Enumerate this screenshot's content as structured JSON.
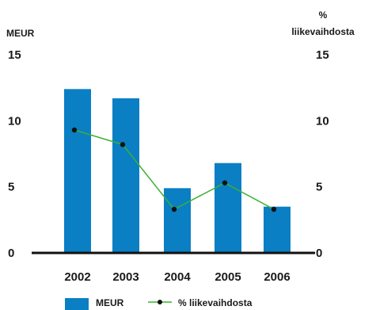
{
  "chart_data": {
    "type": "bar",
    "categories": [
      "2002",
      "2003",
      "2004",
      "2005",
      "2006"
    ],
    "series": [
      {
        "name": "MEUR",
        "kind": "bar",
        "axis": "left",
        "color": "#0a7fc4",
        "values": [
          12.4,
          11.7,
          4.9,
          6.8,
          3.5
        ]
      },
      {
        "name": "% liikevaihdosta",
        "kind": "line",
        "axis": "right",
        "color": "#3cb034",
        "marker_color": "#111111",
        "values": [
          9.3,
          8.2,
          3.3,
          5.3,
          3.3
        ]
      }
    ],
    "y_left": {
      "label": "MEUR",
      "range": [
        0,
        15
      ],
      "ticks": [
        "15",
        "10",
        "5",
        "0"
      ]
    },
    "y_right": {
      "label": "%\nliikevaihdosta",
      "label_lines": [
        "%",
        "liikevaihdosta"
      ],
      "range": [
        0,
        15
      ],
      "ticks": [
        "15",
        "10",
        "5",
        "0"
      ]
    },
    "grid": false,
    "legend": {
      "placement": "bottom"
    }
  }
}
